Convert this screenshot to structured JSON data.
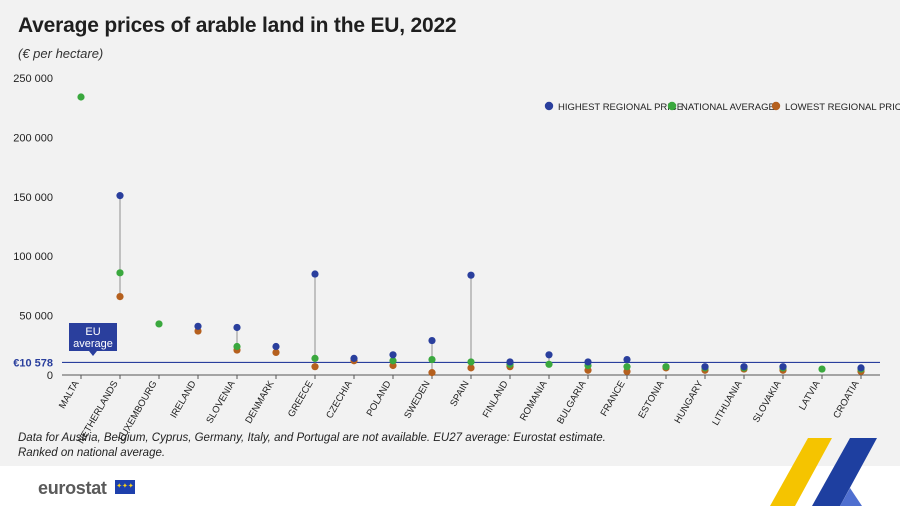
{
  "title": "Average prices of arable land in the EU, 2022",
  "subtitle": "(€ per hectare)",
  "notes": [
    "Data for Austria, Belgium, Cyprus, Germany, Italy, and Portugal are not available. EU27 average: Eurostat estimate.",
    "Ranked on national average."
  ],
  "logo": {
    "text": "eurostat",
    "flag_icon": "eu-flag-icon"
  },
  "colors": {
    "highest": "#2a3f9d",
    "national": "#3aa83e",
    "lowest": "#b5601e",
    "eu_line": "#2a3f9d",
    "axis_text": "#222222"
  },
  "chart_data": {
    "type": "scatter",
    "title": "Average prices of arable land in the EU, 2022",
    "subtitle": "(€ per hectare)",
    "ylim": [
      0,
      250000
    ],
    "yticks": [
      "0",
      "50 000",
      "100 000",
      "150 000",
      "200 000",
      "250 000"
    ],
    "ytick_values": [
      0,
      50000,
      100000,
      150000,
      200000,
      250000
    ],
    "grid": false,
    "legend_position": "top-right",
    "categories": [
      "MALTA",
      "NETHERLANDS",
      "LUXEMBOURG",
      "IRELAND",
      "SLOVENIA",
      "DENMARK",
      "GREECE",
      "CZECHIA",
      "POLAND",
      "SWEDEN",
      "SPAIN",
      "FINLAND",
      "ROMANIA",
      "BULGARIA",
      "FRANCE",
      "ESTONIA",
      "HUNGARY",
      "LITHUANIA",
      "SLOVAKIA",
      "LATVIA",
      "CROATIA"
    ],
    "series": [
      {
        "name": "HIGHEST REGIONAL PRICE",
        "values": [
          null,
          151000,
          null,
          41000,
          40000,
          24000,
          85000,
          14000,
          17000,
          29000,
          84000,
          11000,
          17000,
          11000,
          13000,
          null,
          7000,
          7000,
          7000,
          null,
          6000
        ]
      },
      {
        "name": "NATIONAL AVERAGE",
        "values": [
          234000,
          86000,
          43000,
          null,
          24000,
          null,
          14000,
          null,
          12000,
          13000,
          11000,
          9000,
          9000,
          8000,
          7000,
          7000,
          6000,
          6000,
          6000,
          5000,
          5000
        ]
      },
      {
        "name": "LOWEST REGIONAL PRICE",
        "values": [
          null,
          66000,
          null,
          37000,
          21000,
          19000,
          7000,
          12000,
          8000,
          2000,
          6000,
          7000,
          null,
          4000,
          3000,
          6000,
          4000,
          5000,
          4000,
          null,
          3000
        ]
      }
    ],
    "reference_line": {
      "label": "€10 578",
      "value": 10578,
      "box_label_line1": "EU",
      "box_label_line2": "average"
    }
  }
}
